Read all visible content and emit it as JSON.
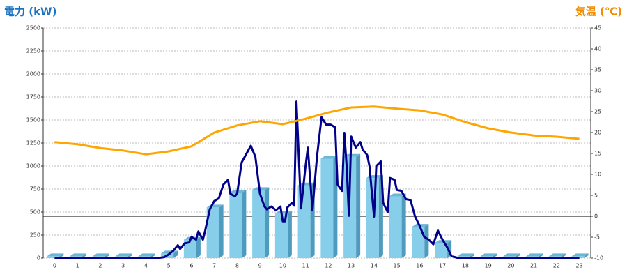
{
  "chart_data": {
    "type": "bar",
    "ylabel": "電力 (kW)",
    "y2label": "気温 (℃)",
    "categories": [
      "0",
      "1",
      "2",
      "3",
      "4",
      "5",
      "6",
      "7",
      "8",
      "9",
      "10",
      "11",
      "12",
      "13",
      "14",
      "15",
      "16",
      "17",
      "18",
      "19",
      "20",
      "21",
      "22",
      "23"
    ],
    "ylim": [
      0,
      2500
    ],
    "yticks": [
      0,
      250,
      500,
      750,
      1000,
      1250,
      1500,
      1750,
      2000,
      2250,
      2500
    ],
    "y2lim": [
      -10,
      45
    ],
    "y2ticks": [
      -10,
      -5,
      0,
      5,
      10,
      15,
      20,
      25,
      30,
      35,
      40,
      45
    ],
    "grid": true,
    "series": [
      {
        "type": "bar",
        "color": "#87ceeb",
        "values": [
          20,
          20,
          20,
          20,
          20,
          50,
          200,
          550,
          710,
          740,
          485,
          790,
          1080,
          1100,
          870,
          670,
          340,
          165,
          20,
          20,
          20,
          20,
          20,
          20
        ]
      },
      {
        "type": "line",
        "color": "#00008b",
        "x": [
          0,
          4.5,
          4.8,
          5.0,
          5.2,
          5.4,
          5.5,
          5.7,
          5.9,
          6.0,
          6.2,
          6.3,
          6.5,
          6.6,
          6.8,
          7.0,
          7.2,
          7.4,
          7.6,
          7.7,
          7.9,
          8.0,
          8.2,
          8.4,
          8.6,
          8.8,
          9.0,
          9.2,
          9.3,
          9.5,
          9.7,
          9.9,
          10.0,
          10.1,
          10.2,
          10.4,
          10.5,
          10.6,
          10.8,
          11.0,
          11.1,
          11.3,
          11.5,
          11.7,
          11.9,
          12.1,
          12.3,
          12.4,
          12.6,
          12.7,
          12.8,
          12.9,
          13.0,
          13.2,
          13.4,
          13.5,
          13.7,
          13.8,
          14.0,
          14.1,
          14.3,
          14.4,
          14.6,
          14.7,
          14.9,
          15.0,
          15.2,
          15.4,
          15.6,
          15.8,
          16.0,
          16.2,
          16.4,
          16.6,
          16.8,
          17.0,
          17.2,
          17.4,
          17.7,
          23
        ],
        "values": [
          0,
          0,
          10,
          40,
          80,
          140,
          100,
          160,
          170,
          230,
          200,
          290,
          200,
          300,
          530,
          620,
          650,
          800,
          850,
          700,
          670,
          700,
          1040,
          1130,
          1220,
          1100,
          700,
          560,
          530,
          560,
          520,
          560,
          400,
          400,
          550,
          600,
          570,
          1700,
          540,
          1000,
          1200,
          520,
          1100,
          1530,
          1450,
          1450,
          1420,
          800,
          730,
          1360,
          1000,
          460,
          1320,
          1200,
          1260,
          1180,
          1120,
          1000,
          450,
          1000,
          1050,
          600,
          500,
          870,
          850,
          740,
          730,
          640,
          630,
          450,
          350,
          230,
          200,
          150,
          300,
          200,
          120,
          20,
          0,
          0
        ]
      },
      {
        "type": "line",
        "axis": "y2",
        "color": "#ffa500",
        "values": [
          17.7,
          17.2,
          16.3,
          15.7,
          14.8,
          15.5,
          16.7,
          20,
          21.7,
          22.7,
          22,
          23.3,
          24.8,
          26,
          26.2,
          25.7,
          25.3,
          24.3,
          22.5,
          21,
          20,
          19.3,
          19,
          18.5
        ]
      }
    ]
  }
}
